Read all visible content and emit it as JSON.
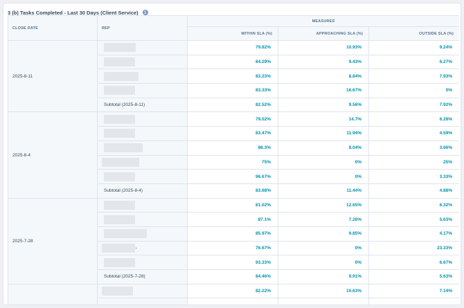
{
  "report": {
    "title": "3 (b) Tasks Completed - Last 30 Days (Client Service)",
    "info_icon": "info-icon"
  },
  "table": {
    "header": {
      "close_date": "CLOSE DATE",
      "rep": "REP",
      "measures": "MEASURES",
      "within": "WITHIN SLA (%)",
      "approaching": "APPROACHING SLA (%)",
      "outside": "OUTSIDE SLA (%)"
    },
    "groups": [
      {
        "date": "2025-8-11",
        "rows": [
          {
            "within": "79.82%",
            "approaching": "10.93%",
            "outside": "9.24%"
          },
          {
            "within": "84.29%",
            "approaching": "9.43%",
            "outside": "6.27%"
          },
          {
            "within": "83.23%",
            "approaching": "8.84%",
            "outside": "7.93%"
          },
          {
            "within": "83.33%",
            "approaching": "16.67%",
            "outside": "0%"
          }
        ],
        "subtotal": {
          "label": "Subtotal (2025-8-11)",
          "within": "82.52%",
          "approaching": "9.56%",
          "outside": "7.92%"
        }
      },
      {
        "date": "2025-8-4",
        "rows": [
          {
            "within": "79.02%",
            "approaching": "14.7%",
            "outside": "6.28%"
          },
          {
            "within": "83.47%",
            "approaching": "11.94%",
            "outside": "4.59%"
          },
          {
            "within": "88.3%",
            "approaching": "8.04%",
            "outside": "3.66%"
          },
          {
            "within": "75%",
            "approaching": "0%",
            "outside": "25%"
          },
          {
            "within": "96.67%",
            "approaching": "0%",
            "outside": "3.33%"
          }
        ],
        "subtotal": {
          "label": "Subtotal (2025-8-4)",
          "within": "83.68%",
          "approaching": "11.44%",
          "outside": "4.88%"
        }
      },
      {
        "date": "2025-7-28",
        "rows": [
          {
            "within": "81.02%",
            "approaching": "12.65%",
            "outside": "6.32%"
          },
          {
            "within": "87.1%",
            "approaching": "7.26%",
            "outside": "5.63%"
          },
          {
            "within": "85.97%",
            "approaching": "9.85%",
            "outside": "4.17%"
          },
          {
            "within": "76.67%",
            "approaching": "0%",
            "outside": "23.33%"
          },
          {
            "within": "93.33%",
            "approaching": "0%",
            "outside": "6.67%"
          }
        ],
        "subtotal": {
          "label": "Subtotal (2025-7-28)",
          "within": "84.46%",
          "approaching": "9.91%",
          "outside": "5.63%"
        }
      },
      {
        "date": "",
        "rows": [
          {
            "within": "82.22%",
            "approaching": "10.63%",
            "outside": "7.14%"
          },
          {
            "within": "",
            "approaching": "",
            "outside": ""
          }
        ]
      }
    ]
  },
  "colors": {
    "accent_value": "#0091ae",
    "header_bg": "#f5f8fa",
    "border": "#dfe3eb",
    "redaction": "#e3e6ea"
  }
}
